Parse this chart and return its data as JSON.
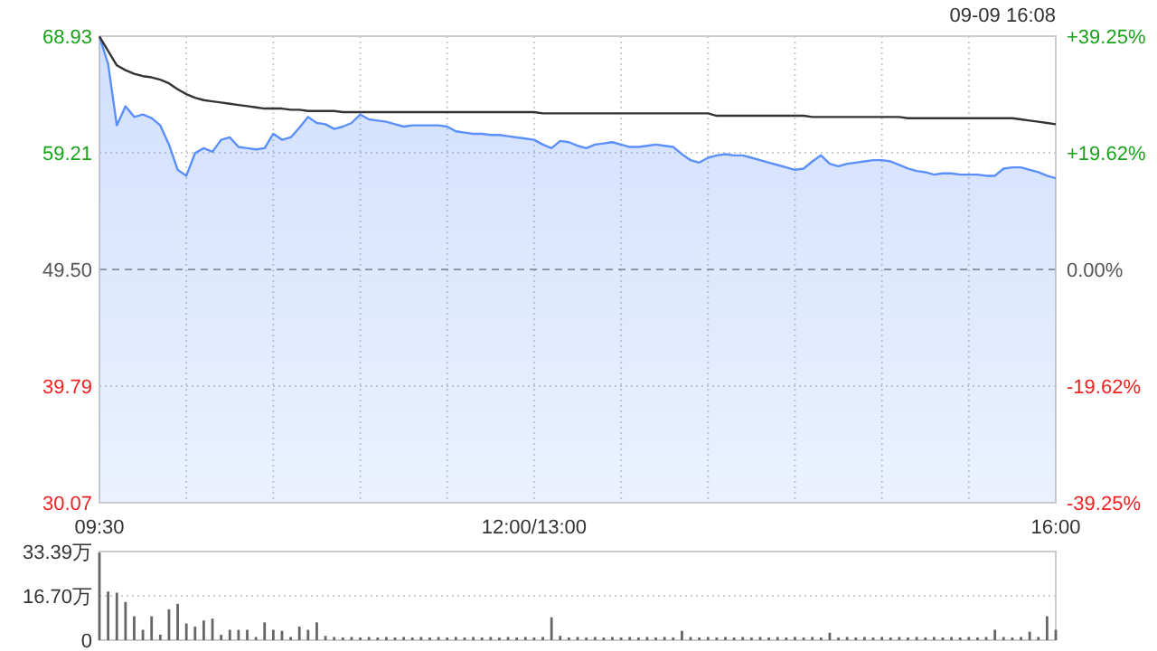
{
  "chart_data": [
    {
      "type": "line",
      "categories": [
        "09:30",
        null,
        null,
        null,
        null,
        null,
        null,
        null,
        null,
        null,
        null,
        null,
        null,
        null,
        null,
        null,
        null,
        null,
        null,
        null,
        null,
        null,
        null,
        null,
        null,
        null,
        null,
        null,
        null,
        null,
        null,
        null,
        null,
        null,
        null,
        null,
        null,
        null,
        null,
        null,
        null,
        null,
        null,
        null,
        null,
        null,
        null,
        null,
        null,
        null,
        "12:00/13:00",
        null,
        null,
        null,
        null,
        null,
        null,
        null,
        null,
        null,
        null,
        null,
        null,
        null,
        null,
        null,
        null,
        null,
        null,
        null,
        null,
        null,
        null,
        null,
        null,
        null,
        null,
        null,
        null,
        null,
        null,
        null,
        null,
        null,
        null,
        null,
        null,
        null,
        null,
        null,
        null,
        null,
        null,
        null,
        null,
        null,
        null,
        null,
        null,
        null,
        null,
        null,
        null,
        null,
        null,
        null,
        null,
        null,
        null,
        null,
        "16:00"
      ],
      "ylim": [
        30.07,
        68.93
      ],
      "yticks": [
        30.07,
        39.79,
        {
          "value": 49.5,
          "label": "49.50"
        },
        59.21,
        68.93
      ],
      "y2lim": [
        -39.25,
        39.25
      ],
      "y2ticks": [
        {
          "value": -39.25,
          "label": "-39.25%"
        },
        {
          "value": -19.62,
          "label": "-19.62%"
        },
        {
          "value": 0,
          "label": "0.00%"
        },
        {
          "value": 19.62,
          "label": "+19.62%"
        },
        {
          "value": 39.25,
          "label": "+39.25%"
        }
      ],
      "grid": true,
      "marker": "none",
      "ref_lines": [
        {
          "axis": "y",
          "value": 49.5,
          "color": "#999999",
          "line_style": "dashed"
        }
      ],
      "annotations": [
        "09-09 16:08"
      ],
      "series": [
        {
          "type": "area",
          "color": "#5b8ff9",
          "values": [
            68.9,
            66.6,
            61.5,
            63.1,
            62.2,
            62.4,
            62.1,
            61.5,
            59.9,
            57.8,
            57.3,
            59.2,
            59.6,
            59.3,
            60.3,
            60.5,
            59.7,
            59.6,
            59.5,
            59.6,
            60.8,
            60.3,
            60.5,
            61.3,
            62.2,
            61.7,
            61.6,
            61.2,
            61.4,
            61.7,
            62.4,
            62.0,
            61.9,
            61.8,
            61.6,
            61.4,
            61.5,
            61.5,
            61.5,
            61.5,
            61.4,
            61.0,
            60.9,
            60.8,
            60.8,
            60.7,
            60.7,
            60.6,
            60.5,
            60.4,
            60.3,
            59.9,
            59.6,
            60.2,
            60.1,
            59.8,
            59.6,
            59.9,
            60.0,
            60.1,
            59.9,
            59.7,
            59.7,
            59.8,
            59.9,
            59.8,
            59.7,
            59.1,
            58.6,
            58.4,
            58.8,
            59.0,
            59.1,
            59.0,
            59.0,
            58.8,
            58.6,
            58.4,
            58.2,
            58.0,
            57.8,
            57.9,
            58.5,
            59.0,
            58.3,
            58.1,
            58.3,
            58.4,
            58.5,
            58.6,
            58.6,
            58.5,
            58.2,
            57.9,
            57.7,
            57.6,
            57.4,
            57.5,
            57.5,
            57.4,
            57.4,
            57.4,
            57.3,
            57.3,
            57.9,
            58.0,
            58.0,
            57.8,
            57.6,
            57.3,
            57.1
          ]
        },
        {
          "type": "line",
          "color": "#333333",
          "values": [
            68.9,
            67.7,
            66.5,
            66.1,
            65.8,
            65.6,
            65.5,
            65.3,
            65.0,
            64.5,
            64.1,
            63.8,
            63.6,
            63.5,
            63.4,
            63.3,
            63.2,
            63.1,
            63.0,
            62.9,
            62.9,
            62.9,
            62.8,
            62.8,
            62.7,
            62.7,
            62.7,
            62.7,
            62.6,
            62.6,
            62.6,
            62.6,
            62.6,
            62.6,
            62.6,
            62.6,
            62.6,
            62.6,
            62.6,
            62.6,
            62.6,
            62.6,
            62.6,
            62.6,
            62.6,
            62.6,
            62.6,
            62.6,
            62.6,
            62.6,
            62.6,
            62.5,
            62.5,
            62.5,
            62.5,
            62.5,
            62.5,
            62.5,
            62.5,
            62.5,
            62.5,
            62.5,
            62.5,
            62.5,
            62.5,
            62.5,
            62.5,
            62.5,
            62.5,
            62.5,
            62.5,
            62.3,
            62.3,
            62.3,
            62.3,
            62.3,
            62.3,
            62.3,
            62.3,
            62.3,
            62.3,
            62.3,
            62.2,
            62.2,
            62.2,
            62.2,
            62.2,
            62.2,
            62.2,
            62.2,
            62.2,
            62.2,
            62.2,
            62.1,
            62.1,
            62.1,
            62.1,
            62.1,
            62.1,
            62.1,
            62.1,
            62.1,
            62.1,
            62.1,
            62.1,
            62.1,
            62.0,
            61.9,
            61.8,
            61.7,
            61.6
          ]
        }
      ]
    },
    {
      "type": "bar",
      "categories": [
        null,
        null,
        null,
        null,
        null,
        null,
        null,
        null,
        null,
        null,
        null,
        null,
        null,
        null,
        null,
        null,
        null,
        null,
        null,
        null,
        null,
        null,
        null,
        null,
        null,
        null,
        null,
        null,
        null,
        null,
        null,
        null,
        null,
        null,
        null,
        null,
        null,
        null,
        null,
        null,
        null,
        null,
        null,
        null,
        null,
        null,
        null,
        null,
        null,
        null,
        null,
        null,
        null,
        null,
        null,
        null,
        null,
        null,
        null,
        null,
        null,
        null,
        null,
        null,
        null,
        null,
        null,
        null,
        null,
        null,
        null,
        null,
        null,
        null,
        null,
        null,
        null,
        null,
        null,
        null,
        null,
        null,
        null,
        null,
        null,
        null,
        null,
        null,
        null,
        null,
        null,
        null,
        null,
        null,
        null,
        null,
        null,
        null,
        null,
        null,
        null,
        null,
        null,
        null,
        null,
        null,
        null,
        null,
        null,
        null,
        null
      ],
      "ylim": [
        0,
        33.39
      ],
      "yticks": [
        0,
        {
          "value": 16.7,
          "label": "16.70万"
        },
        {
          "value": 33.39,
          "label": "33.39万"
        }
      ],
      "grid": "y",
      "tick_labels": "y",
      "color": "#666666",
      "values": [
        33.0,
        18.3,
        17.9,
        14.4,
        9.0,
        3.9,
        9.0,
        2.1,
        11.6,
        13.7,
        6.3,
        5.1,
        7.4,
        8.1,
        2.0,
        3.9,
        3.9,
        3.9,
        1.2,
        6.7,
        3.9,
        3.5,
        1.2,
        5.1,
        3.9,
        6.7,
        1.6,
        1.2,
        1.0,
        1.2,
        1.0,
        1.2,
        1.0,
        1.2,
        1.0,
        1.2,
        1.0,
        1.2,
        1.0,
        1.2,
        1.0,
        1.2,
        1.0,
        1.2,
        1.0,
        1.2,
        1.0,
        1.2,
        1.0,
        1.2,
        1.0,
        1.2,
        8.6,
        1.6,
        1.0,
        1.2,
        1.0,
        1.2,
        1.0,
        1.2,
        1.0,
        1.2,
        1.0,
        1.2,
        1.0,
        1.2,
        1.0,
        3.5,
        1.2,
        1.0,
        1.2,
        1.0,
        1.2,
        1.0,
        1.2,
        1.0,
        1.2,
        1.0,
        1.2,
        1.0,
        1.2,
        1.0,
        1.2,
        1.0,
        2.8,
        1.0,
        1.2,
        1.0,
        1.2,
        1.0,
        1.2,
        1.0,
        1.2,
        1.0,
        1.2,
        1.0,
        1.2,
        1.0,
        1.2,
        1.0,
        1.2,
        1.0,
        1.2,
        3.9,
        1.2,
        1.0,
        1.2,
        3.2,
        1.2,
        9.0,
        3.9
      ]
    }
  ]
}
